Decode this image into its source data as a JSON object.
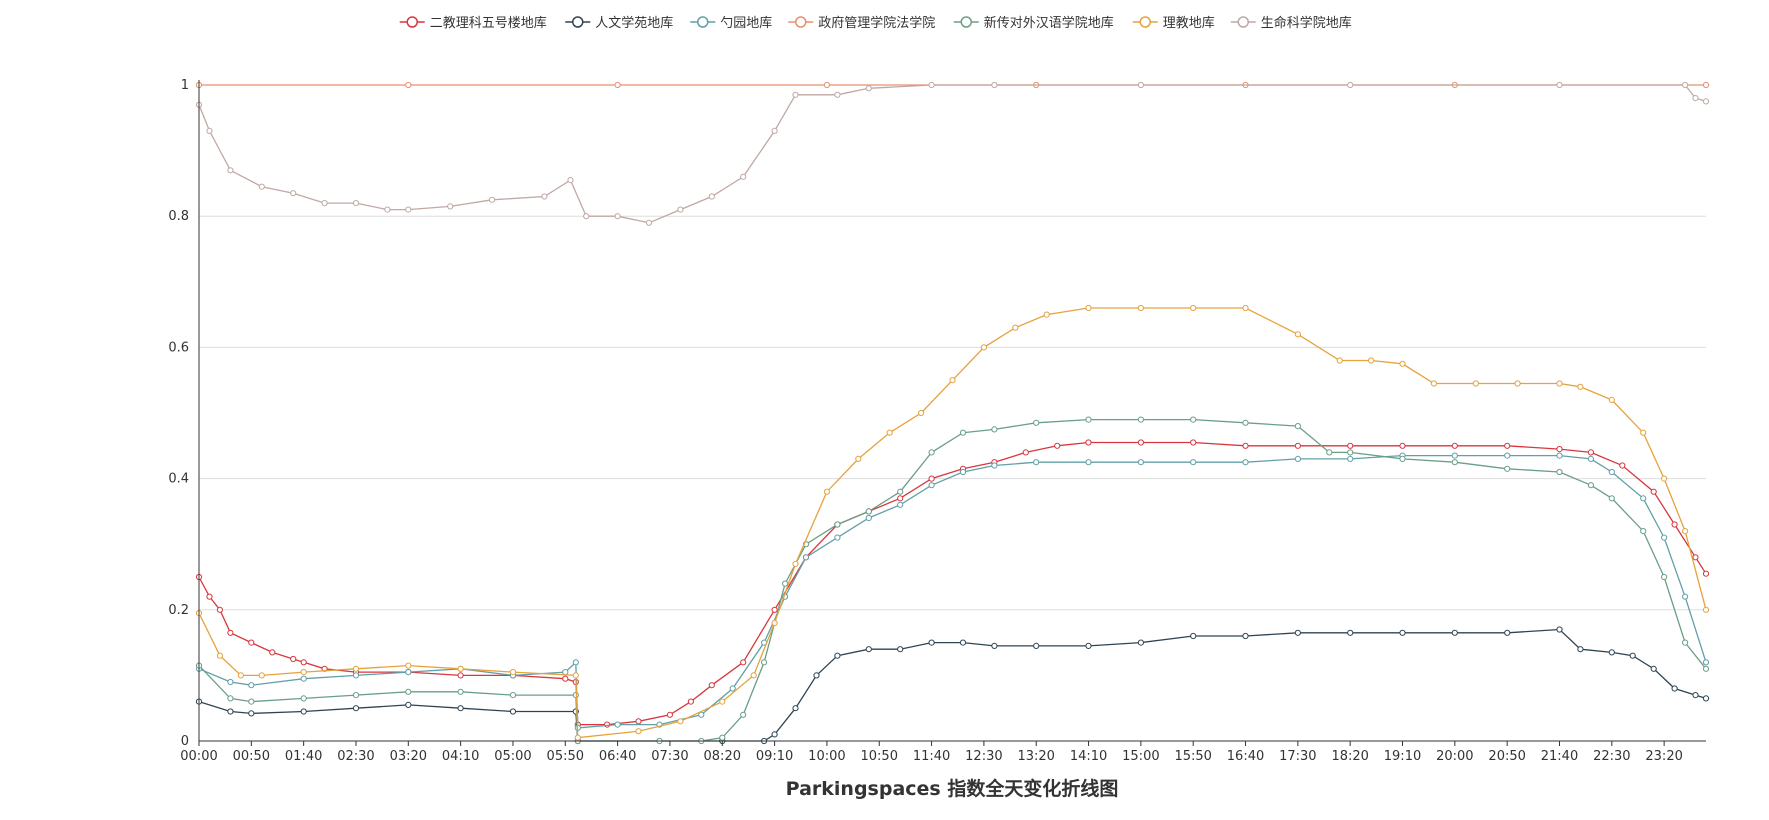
{
  "chart_data": {
    "type": "line",
    "title": "Parkingspaces 指数全天变化折线图",
    "xlabel": "",
    "ylabel": "",
    "ylim": [
      0,
      1
    ],
    "grid": true,
    "legend_position": "top-center",
    "y_ticks": [
      "0",
      "0.2",
      "0.4",
      "0.6",
      "0.8",
      "1"
    ],
    "x_ticks": [
      "00:00",
      "00:50",
      "01:40",
      "02:30",
      "03:20",
      "04:10",
      "05:00",
      "05:50",
      "06:40",
      "07:30",
      "08:20",
      "09:10",
      "10:00",
      "10:50",
      "11:40",
      "12:30",
      "13:20",
      "14:10",
      "15:00",
      "15:50",
      "16:40",
      "17:30",
      "18:20",
      "19:10",
      "20:00",
      "20:50",
      "21:40",
      "22:30",
      "23:20"
    ],
    "x_range_minutes": [
      0,
      1440
    ],
    "series": [
      {
        "name": "二教理科五号楼地库",
        "color": "#d9363e",
        "points": [
          [
            0,
            0.25
          ],
          [
            10,
            0.22
          ],
          [
            20,
            0.2
          ],
          [
            30,
            0.165
          ],
          [
            50,
            0.15
          ],
          [
            70,
            0.135
          ],
          [
            90,
            0.125
          ],
          [
            100,
            0.12
          ],
          [
            120,
            0.11
          ],
          [
            150,
            0.105
          ],
          [
            200,
            0.105
          ],
          [
            250,
            0.1
          ],
          [
            300,
            0.1
          ],
          [
            350,
            0.095
          ],
          [
            360,
            0.09
          ],
          [
            362,
            0.025
          ],
          [
            390,
            0.025
          ],
          [
            420,
            0.03
          ],
          [
            450,
            0.04
          ],
          [
            470,
            0.06
          ],
          [
            490,
            0.085
          ],
          [
            520,
            0.12
          ],
          [
            550,
            0.2
          ],
          [
            580,
            0.28
          ],
          [
            610,
            0.33
          ],
          [
            640,
            0.35
          ],
          [
            670,
            0.37
          ],
          [
            700,
            0.4
          ],
          [
            730,
            0.415
          ],
          [
            760,
            0.425
          ],
          [
            790,
            0.44
          ],
          [
            820,
            0.45
          ],
          [
            850,
            0.455
          ],
          [
            900,
            0.455
          ],
          [
            950,
            0.455
          ],
          [
            1000,
            0.45
          ],
          [
            1050,
            0.45
          ],
          [
            1100,
            0.45
          ],
          [
            1150,
            0.45
          ],
          [
            1200,
            0.45
          ],
          [
            1250,
            0.45
          ],
          [
            1300,
            0.445
          ],
          [
            1330,
            0.44
          ],
          [
            1360,
            0.42
          ],
          [
            1390,
            0.38
          ],
          [
            1410,
            0.33
          ],
          [
            1430,
            0.28
          ],
          [
            1440,
            0.255
          ]
        ]
      },
      {
        "name": "人文学苑地库",
        "color": "#2f4554",
        "points": [
          [
            0,
            0.06
          ],
          [
            30,
            0.045
          ],
          [
            50,
            0.042
          ],
          [
            100,
            0.045
          ],
          [
            150,
            0.05
          ],
          [
            200,
            0.055
          ],
          [
            250,
            0.05
          ],
          [
            300,
            0.045
          ],
          [
            360,
            0.045
          ],
          [
            362,
            0.0
          ],
          [
            500,
            0.0
          ],
          [
            540,
            0.0
          ],
          [
            550,
            0.01
          ],
          [
            570,
            0.05
          ],
          [
            590,
            0.1
          ],
          [
            610,
            0.13
          ],
          [
            640,
            0.14
          ],
          [
            670,
            0.14
          ],
          [
            700,
            0.15
          ],
          [
            730,
            0.15
          ],
          [
            760,
            0.145
          ],
          [
            800,
            0.145
          ],
          [
            850,
            0.145
          ],
          [
            900,
            0.15
          ],
          [
            950,
            0.16
          ],
          [
            1000,
            0.16
          ],
          [
            1050,
            0.165
          ],
          [
            1100,
            0.165
          ],
          [
            1150,
            0.165
          ],
          [
            1200,
            0.165
          ],
          [
            1250,
            0.165
          ],
          [
            1300,
            0.17
          ],
          [
            1320,
            0.14
          ],
          [
            1350,
            0.135
          ],
          [
            1370,
            0.13
          ],
          [
            1390,
            0.11
          ],
          [
            1410,
            0.08
          ],
          [
            1430,
            0.07
          ],
          [
            1440,
            0.065
          ]
        ]
      },
      {
        "name": "勺园地库",
        "color": "#61a0a8",
        "points": [
          [
            0,
            0.11
          ],
          [
            30,
            0.09
          ],
          [
            50,
            0.085
          ],
          [
            100,
            0.095
          ],
          [
            150,
            0.1
          ],
          [
            200,
            0.105
          ],
          [
            250,
            0.11
          ],
          [
            300,
            0.1
          ],
          [
            350,
            0.105
          ],
          [
            360,
            0.12
          ],
          [
            362,
            0.02
          ],
          [
            400,
            0.025
          ],
          [
            440,
            0.025
          ],
          [
            480,
            0.04
          ],
          [
            510,
            0.08
          ],
          [
            540,
            0.15
          ],
          [
            560,
            0.22
          ],
          [
            580,
            0.28
          ],
          [
            610,
            0.31
          ],
          [
            640,
            0.34
          ],
          [
            670,
            0.36
          ],
          [
            700,
            0.39
          ],
          [
            730,
            0.41
          ],
          [
            760,
            0.42
          ],
          [
            800,
            0.425
          ],
          [
            850,
            0.425
          ],
          [
            900,
            0.425
          ],
          [
            950,
            0.425
          ],
          [
            1000,
            0.425
          ],
          [
            1050,
            0.43
          ],
          [
            1100,
            0.43
          ],
          [
            1150,
            0.435
          ],
          [
            1200,
            0.435
          ],
          [
            1250,
            0.435
          ],
          [
            1300,
            0.435
          ],
          [
            1330,
            0.43
          ],
          [
            1350,
            0.41
          ],
          [
            1380,
            0.37
          ],
          [
            1400,
            0.31
          ],
          [
            1420,
            0.22
          ],
          [
            1440,
            0.12
          ]
        ]
      },
      {
        "name": "政府管理学院法学院",
        "color": "#e98f6f",
        "points": [
          [
            0,
            1
          ],
          [
            200,
            1
          ],
          [
            400,
            1
          ],
          [
            600,
            1
          ],
          [
            800,
            1
          ],
          [
            1000,
            1
          ],
          [
            1200,
            1
          ],
          [
            1440,
            1
          ]
        ]
      },
      {
        "name": "新传对外汉语学院地库",
        "color": "#6a9f87",
        "points": [
          [
            0,
            0.115
          ],
          [
            30,
            0.065
          ],
          [
            50,
            0.06
          ],
          [
            100,
            0.065
          ],
          [
            150,
            0.07
          ],
          [
            200,
            0.075
          ],
          [
            250,
            0.075
          ],
          [
            300,
            0.07
          ],
          [
            360,
            0.07
          ],
          [
            362,
            0.0
          ],
          [
            440,
            0.0
          ],
          [
            480,
            0.0
          ],
          [
            500,
            0.005
          ],
          [
            520,
            0.04
          ],
          [
            540,
            0.12
          ],
          [
            560,
            0.24
          ],
          [
            580,
            0.3
          ],
          [
            610,
            0.33
          ],
          [
            640,
            0.35
          ],
          [
            670,
            0.38
          ],
          [
            700,
            0.44
          ],
          [
            730,
            0.47
          ],
          [
            760,
            0.475
          ],
          [
            800,
            0.485
          ],
          [
            850,
            0.49
          ],
          [
            900,
            0.49
          ],
          [
            950,
            0.49
          ],
          [
            1000,
            0.485
          ],
          [
            1050,
            0.48
          ],
          [
            1080,
            0.44
          ],
          [
            1100,
            0.44
          ],
          [
            1150,
            0.43
          ],
          [
            1200,
            0.425
          ],
          [
            1250,
            0.415
          ],
          [
            1300,
            0.41
          ],
          [
            1330,
            0.39
          ],
          [
            1350,
            0.37
          ],
          [
            1380,
            0.32
          ],
          [
            1400,
            0.25
          ],
          [
            1420,
            0.15
          ],
          [
            1440,
            0.11
          ]
        ]
      },
      {
        "name": "理教地库",
        "color": "#e6a23c",
        "points": [
          [
            0,
            0.195
          ],
          [
            20,
            0.13
          ],
          [
            40,
            0.1
          ],
          [
            60,
            0.1
          ],
          [
            100,
            0.105
          ],
          [
            150,
            0.11
          ],
          [
            200,
            0.115
          ],
          [
            250,
            0.11
          ],
          [
            300,
            0.105
          ],
          [
            360,
            0.1
          ],
          [
            362,
            0.005
          ],
          [
            420,
            0.015
          ],
          [
            460,
            0.03
          ],
          [
            500,
            0.06
          ],
          [
            530,
            0.1
          ],
          [
            550,
            0.18
          ],
          [
            570,
            0.27
          ],
          [
            600,
            0.38
          ],
          [
            630,
            0.43
          ],
          [
            660,
            0.47
          ],
          [
            690,
            0.5
          ],
          [
            720,
            0.55
          ],
          [
            750,
            0.6
          ],
          [
            780,
            0.63
          ],
          [
            810,
            0.65
          ],
          [
            850,
            0.66
          ],
          [
            900,
            0.66
          ],
          [
            950,
            0.66
          ],
          [
            1000,
            0.66
          ],
          [
            1050,
            0.62
          ],
          [
            1090,
            0.58
          ],
          [
            1120,
            0.58
          ],
          [
            1150,
            0.575
          ],
          [
            1180,
            0.545
          ],
          [
            1220,
            0.545
          ],
          [
            1260,
            0.545
          ],
          [
            1300,
            0.545
          ],
          [
            1320,
            0.54
          ],
          [
            1350,
            0.52
          ],
          [
            1380,
            0.47
          ],
          [
            1400,
            0.4
          ],
          [
            1420,
            0.32
          ],
          [
            1440,
            0.2
          ]
        ]
      },
      {
        "name": "生命科学院地库",
        "color": "#c0a8a4",
        "points": [
          [
            0,
            0.97
          ],
          [
            10,
            0.93
          ],
          [
            30,
            0.87
          ],
          [
            60,
            0.845
          ],
          [
            90,
            0.835
          ],
          [
            120,
            0.82
          ],
          [
            150,
            0.82
          ],
          [
            180,
            0.81
          ],
          [
            200,
            0.81
          ],
          [
            240,
            0.815
          ],
          [
            280,
            0.825
          ],
          [
            330,
            0.83
          ],
          [
            355,
            0.855
          ],
          [
            370,
            0.8
          ],
          [
            400,
            0.8
          ],
          [
            430,
            0.79
          ],
          [
            460,
            0.81
          ],
          [
            490,
            0.83
          ],
          [
            520,
            0.86
          ],
          [
            550,
            0.93
          ],
          [
            570,
            0.985
          ],
          [
            610,
            0.985
          ],
          [
            640,
            0.995
          ],
          [
            700,
            1
          ],
          [
            760,
            1
          ],
          [
            900,
            1
          ],
          [
            1100,
            1
          ],
          [
            1300,
            1
          ],
          [
            1420,
            1
          ],
          [
            1430,
            0.98
          ],
          [
            1440,
            0.975
          ]
        ]
      }
    ]
  }
}
